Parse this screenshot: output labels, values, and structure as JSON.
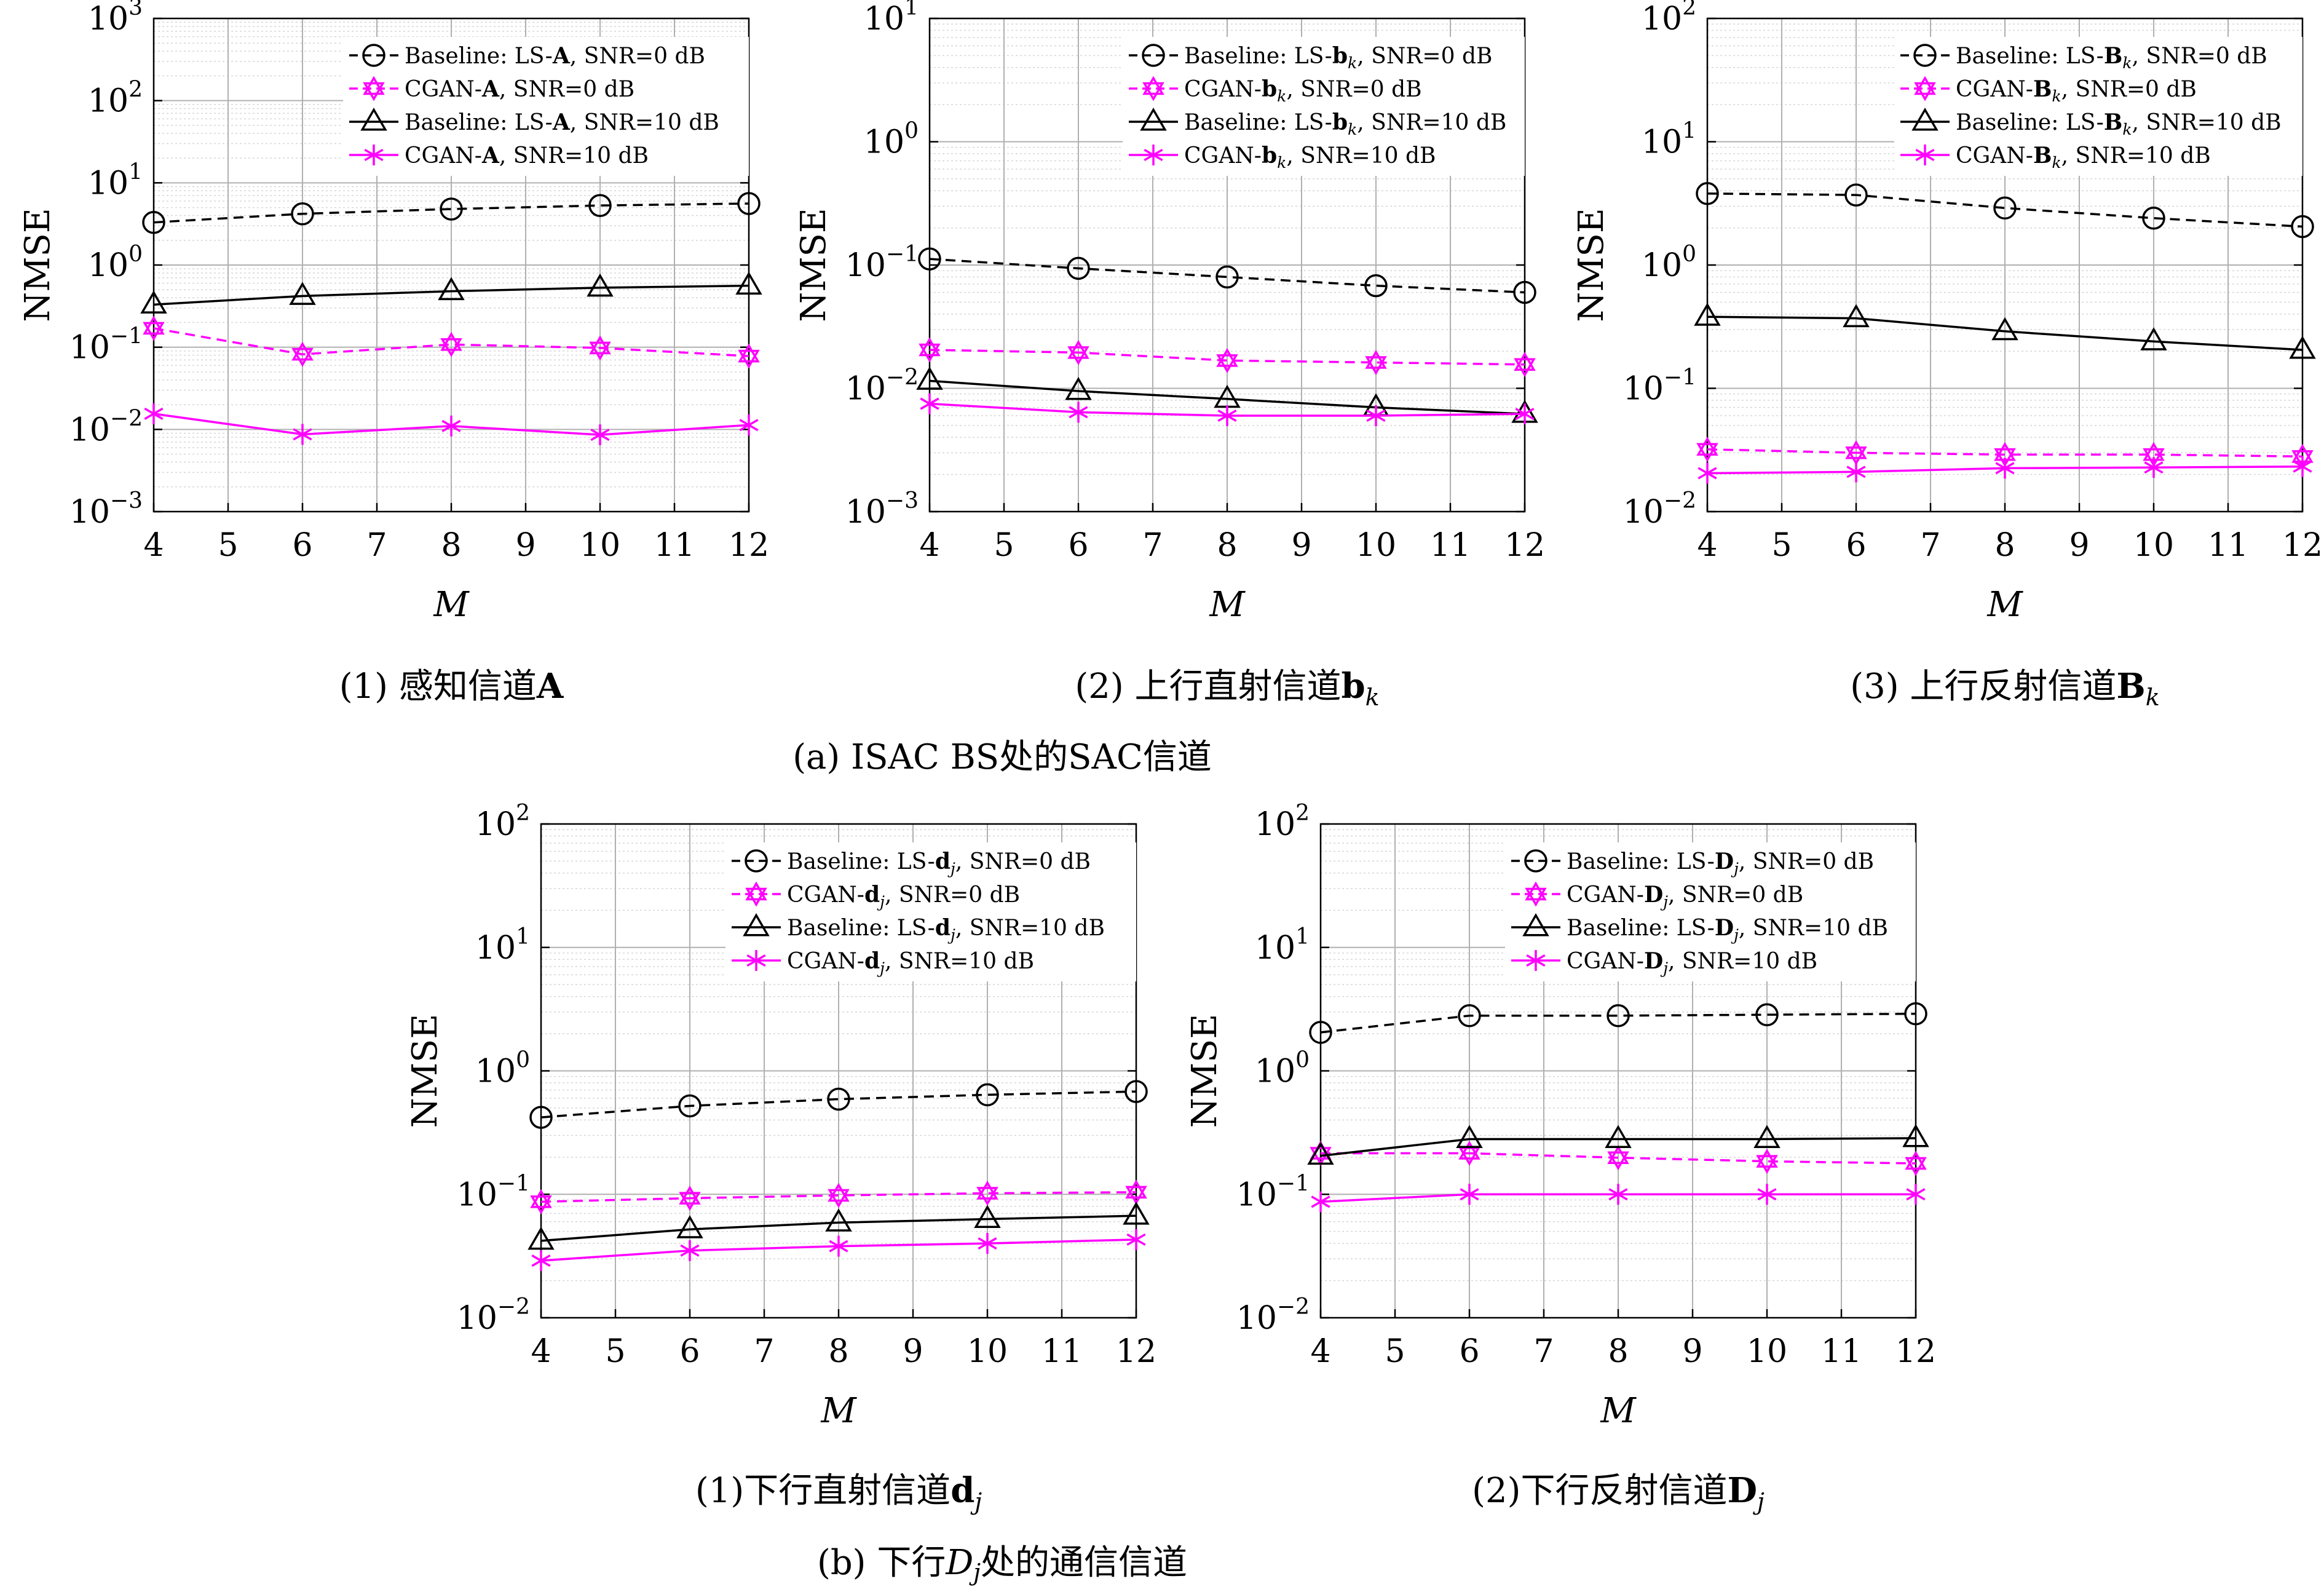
{
  "figure": {
    "group_captions": [
      {
        "prefix": "(a) ISAC BS处的SAC信道"
      },
      {
        "prefix": "(b) 下行",
        "math": "D",
        "sub": "j",
        "suffix": "处的通信信道"
      }
    ]
  },
  "colors": {
    "baseline": "#000000",
    "cgan": "#ff00ff",
    "grid": "#b0b0b0"
  },
  "chart_data": [
    {
      "type": "line",
      "caption": {
        "prefix": "(1) 感知信道",
        "bold": "A",
        "sub": ""
      },
      "ylabel": "NMSE",
      "xlabel": "M",
      "xlim": [
        4,
        12
      ],
      "xticks": [
        4,
        5,
        6,
        7,
        8,
        9,
        10,
        11,
        12
      ],
      "yscale": "log",
      "ylim_exp": [
        -3,
        3
      ],
      "grid": true,
      "legend_position": "top-right",
      "x": [
        4,
        6,
        8,
        10,
        12
      ],
      "series": [
        {
          "name": "Baseline: LS-A, SNR=0 dB",
          "label_pre": "Baseline: LS-",
          "label_bold": "A",
          "label_sub": "",
          "label_post": ", SNR=0 dB",
          "color": "#000000",
          "dash": true,
          "marker": "circle",
          "values": [
            3.3,
            4.2,
            4.8,
            5.3,
            5.6
          ]
        },
        {
          "name": "CGAN-A, SNR=0 dB",
          "label_pre": "CGAN-",
          "label_bold": "A",
          "label_sub": "",
          "label_post": ", SNR=0 dB",
          "color": "#ff00ff",
          "dash": true,
          "marker": "hexagram",
          "values": [
            0.17,
            0.082,
            0.108,
            0.098,
            0.078
          ]
        },
        {
          "name": "Baseline: LS-A, SNR=10 dB",
          "label_pre": "Baseline: LS-",
          "label_bold": "A",
          "label_sub": "",
          "label_post": ", SNR=10 dB",
          "color": "#000000",
          "dash": false,
          "marker": "triangle",
          "values": [
            0.33,
            0.42,
            0.48,
            0.53,
            0.56
          ]
        },
        {
          "name": "CGAN-A, SNR=10 dB",
          "label_pre": "CGAN-",
          "label_bold": "A",
          "label_sub": "",
          "label_post": ", SNR=10 dB",
          "color": "#ff00ff",
          "dash": false,
          "marker": "asterisk",
          "values": [
            0.0155,
            0.0087,
            0.011,
            0.0086,
            0.0113
          ]
        }
      ],
      "ticks_y": [
        "10^-3",
        "10^-2",
        "10^-1",
        "10^0",
        "10^1",
        "10^2",
        "10^3"
      ]
    },
    {
      "type": "line",
      "caption": {
        "prefix": "(2) 上行直射信道",
        "bold": "b",
        "sub": "k"
      },
      "ylabel": "NMSE",
      "xlabel": "M",
      "xlim": [
        4,
        12
      ],
      "xticks": [
        4,
        5,
        6,
        7,
        8,
        9,
        10,
        11,
        12
      ],
      "yscale": "log",
      "ylim_exp": [
        -3,
        1
      ],
      "grid": true,
      "legend_position": "top-right",
      "x": [
        4,
        6,
        8,
        10,
        12
      ],
      "series": [
        {
          "name": "Baseline: LS-bk, SNR=0 dB",
          "label_pre": "Baseline: LS-",
          "label_bold": "b",
          "label_sub": "k",
          "label_post": ", SNR=0 dB",
          "color": "#000000",
          "dash": true,
          "marker": "circle",
          "values": [
            0.112,
            0.094,
            0.08,
            0.068,
            0.06
          ]
        },
        {
          "name": "CGAN-bk, SNR=0 dB",
          "label_pre": "CGAN-",
          "label_bold": "b",
          "label_sub": "k",
          "label_post": ", SNR=0 dB",
          "color": "#ff00ff",
          "dash": true,
          "marker": "hexagram",
          "values": [
            0.0205,
            0.0195,
            0.0168,
            0.0162,
            0.0156
          ]
        },
        {
          "name": "Baseline: LS-bk, SNR=10 dB",
          "label_pre": "Baseline: LS-",
          "label_bold": "b",
          "label_sub": "k",
          "label_post": ", SNR=10 dB",
          "color": "#000000",
          "dash": false,
          "marker": "triangle",
          "values": [
            0.0115,
            0.0095,
            0.0082,
            0.007,
            0.0062
          ]
        },
        {
          "name": "CGAN-bk, SNR=10 dB",
          "label_pre": "CGAN-",
          "label_bold": "b",
          "label_sub": "k",
          "label_post": ", SNR=10 dB",
          "color": "#ff00ff",
          "dash": false,
          "marker": "asterisk",
          "values": [
            0.0075,
            0.0064,
            0.006,
            0.006,
            0.0062
          ]
        }
      ],
      "ticks_y": [
        "10^-3",
        "10^-2",
        "10^-1",
        "10^0",
        "10^1"
      ]
    },
    {
      "type": "line",
      "caption": {
        "prefix": "(3) 上行反射信道",
        "bold": "B",
        "sub": "k"
      },
      "ylabel": "NMSE",
      "xlabel": "M",
      "xlim": [
        4,
        12
      ],
      "xticks": [
        4,
        5,
        6,
        7,
        8,
        9,
        10,
        11,
        12
      ],
      "yscale": "log",
      "ylim_exp": [
        -2,
        2
      ],
      "grid": true,
      "legend_position": "top-right",
      "x": [
        4,
        6,
        8,
        10,
        12
      ],
      "series": [
        {
          "name": "Baseline: LS-Bk, SNR=0 dB",
          "label_pre": "Baseline: LS-",
          "label_bold": "B",
          "label_sub": "k",
          "label_post": ", SNR=0 dB",
          "color": "#000000",
          "dash": true,
          "marker": "circle",
          "values": [
            3.8,
            3.7,
            2.9,
            2.4,
            2.05
          ]
        },
        {
          "name": "CGAN-Bk, SNR=0 dB",
          "label_pre": "CGAN-",
          "label_bold": "B",
          "label_sub": "k",
          "label_post": ", SNR=0 dB",
          "color": "#ff00ff",
          "dash": true,
          "marker": "hexagram",
          "values": [
            0.032,
            0.03,
            0.029,
            0.029,
            0.028
          ]
        },
        {
          "name": "Baseline: LS-Bk, SNR=10 dB",
          "label_pre": "Baseline: LS-",
          "label_bold": "B",
          "label_sub": "k",
          "label_post": ", SNR=10 dB",
          "color": "#000000",
          "dash": false,
          "marker": "triangle",
          "values": [
            0.38,
            0.37,
            0.29,
            0.24,
            0.205
          ]
        },
        {
          "name": "CGAN-Bk, SNR=10 dB",
          "label_pre": "CGAN-",
          "label_bold": "B",
          "label_sub": "k",
          "label_post": ", SNR=10 dB",
          "color": "#ff00ff",
          "dash": false,
          "marker": "asterisk",
          "values": [
            0.0205,
            0.021,
            0.0225,
            0.0228,
            0.0232
          ]
        }
      ],
      "ticks_y": [
        "10^-2",
        "10^-1",
        "10^0",
        "10^1",
        "10^2"
      ]
    },
    {
      "type": "line",
      "caption": {
        "prefix": "(1)下行直射信道",
        "bold": "d",
        "sub": "j"
      },
      "ylabel": "NMSE",
      "xlabel": "M",
      "xlim": [
        4,
        12
      ],
      "xticks": [
        4,
        5,
        6,
        7,
        8,
        9,
        10,
        11,
        12
      ],
      "yscale": "log",
      "ylim_exp": [
        -2,
        2
      ],
      "grid": true,
      "legend_position": "top-right",
      "x": [
        4,
        6,
        8,
        10,
        12
      ],
      "series": [
        {
          "name": "Baseline: LS-dj, SNR=0 dB",
          "label_pre": "Baseline: LS-",
          "label_bold": "d",
          "label_sub": "j",
          "label_post": ", SNR=0 dB",
          "color": "#000000",
          "dash": true,
          "marker": "circle",
          "values": [
            0.42,
            0.52,
            0.59,
            0.64,
            0.68
          ]
        },
        {
          "name": "CGAN-dj, SNR=0 dB",
          "label_pre": "CGAN-",
          "label_bold": "d",
          "label_sub": "j",
          "label_post": ", SNR=0 dB",
          "color": "#ff00ff",
          "dash": true,
          "marker": "hexagram",
          "values": [
            0.087,
            0.093,
            0.098,
            0.102,
            0.104
          ]
        },
        {
          "name": "Baseline: LS-dj, SNR=10 dB",
          "label_pre": "Baseline: LS-",
          "label_bold": "d",
          "label_sub": "j",
          "label_post": ", SNR=10 dB",
          "color": "#000000",
          "dash": false,
          "marker": "triangle",
          "values": [
            0.042,
            0.052,
            0.059,
            0.063,
            0.067
          ]
        },
        {
          "name": "CGAN-dj, SNR=10 dB",
          "label_pre": "CGAN-",
          "label_bold": "d",
          "label_sub": "j",
          "label_post": ", SNR=10 dB",
          "color": "#ff00ff",
          "dash": false,
          "marker": "asterisk",
          "values": [
            0.029,
            0.035,
            0.038,
            0.04,
            0.043
          ]
        }
      ],
      "ticks_y": [
        "10^-2",
        "10^-1",
        "10^0",
        "10^1",
        "10^2"
      ]
    },
    {
      "type": "line",
      "caption": {
        "prefix": "(2)下行反射信道",
        "bold": "D",
        "sub": "j"
      },
      "ylabel": "NMSE",
      "xlabel": "M",
      "xlim": [
        4,
        12
      ],
      "xticks": [
        4,
        5,
        6,
        7,
        8,
        9,
        10,
        11,
        12
      ],
      "yscale": "log",
      "ylim_exp": [
        -2,
        2
      ],
      "grid": true,
      "legend_position": "top-right",
      "x": [
        4,
        6,
        8,
        10,
        12
      ],
      "series": [
        {
          "name": "Baseline: LS-Dj, SNR=0 dB",
          "label_pre": "Baseline: LS-",
          "label_bold": "D",
          "label_sub": "j",
          "label_post": ", SNR=0 dB",
          "color": "#000000",
          "dash": true,
          "marker": "circle",
          "values": [
            2.05,
            2.8,
            2.8,
            2.85,
            2.9
          ]
        },
        {
          "name": "CGAN-Dj, SNR=0 dB",
          "label_pre": "CGAN-",
          "label_bold": "D",
          "label_sub": "j",
          "label_post": ", SNR=0 dB",
          "color": "#ff00ff",
          "dash": true,
          "marker": "hexagram",
          "values": [
            0.215,
            0.215,
            0.198,
            0.185,
            0.178
          ]
        },
        {
          "name": "Baseline: LS-Dj, SNR=10 dB",
          "label_pre": "Baseline: LS-",
          "label_bold": "D",
          "label_sub": "j",
          "label_post": ", SNR=10 dB",
          "color": "#000000",
          "dash": false,
          "marker": "triangle",
          "values": [
            0.205,
            0.28,
            0.28,
            0.28,
            0.285
          ]
        },
        {
          "name": "CGAN-Dj, SNR=10 dB",
          "label_pre": "CGAN-",
          "label_bold": "D",
          "label_sub": "j",
          "label_post": ", SNR=10 dB",
          "color": "#ff00ff",
          "dash": false,
          "marker": "asterisk",
          "values": [
            0.087,
            0.1,
            0.1,
            0.1,
            0.1
          ]
        }
      ],
      "ticks_y": [
        "10^-2",
        "10^-1",
        "10^0",
        "10^1",
        "10^2"
      ]
    }
  ]
}
